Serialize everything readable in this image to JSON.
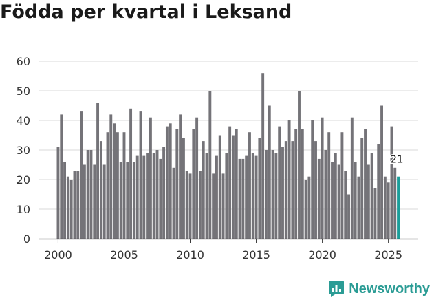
{
  "page": {
    "title": "Födda per kvartal i Leksand"
  },
  "brand": {
    "name": "Newsworthy",
    "icon": "newsworthy-logo-icon",
    "color": "#2b9c95"
  },
  "chart_data": {
    "type": "bar",
    "title": "Födda per kvartal i Leksand",
    "xlabel": "",
    "ylabel": "",
    "ylim": [
      0,
      60
    ],
    "yticks": [
      0,
      10,
      20,
      30,
      40,
      50,
      60
    ],
    "xticks": [
      {
        "label": "2000",
        "index": 0
      },
      {
        "label": "2005",
        "index": 20
      },
      {
        "label": "2010",
        "index": 40
      },
      {
        "label": "2015",
        "index": 60
      },
      {
        "label": "2020",
        "index": 80
      },
      {
        "label": "2025",
        "index": 100
      }
    ],
    "bar_color": "#747378",
    "highlight_color": "#1a9e9a",
    "highlight_label": "21",
    "categories": [
      "2000 Q1",
      "2000 Q2",
      "2000 Q3",
      "2000 Q4",
      "2001 Q1",
      "2001 Q2",
      "2001 Q3",
      "2001 Q4",
      "2002 Q1",
      "2002 Q2",
      "2002 Q3",
      "2002 Q4",
      "2003 Q1",
      "2003 Q2",
      "2003 Q3",
      "2003 Q4",
      "2004 Q1",
      "2004 Q2",
      "2004 Q3",
      "2004 Q4",
      "2005 Q1",
      "2005 Q2",
      "2005 Q3",
      "2005 Q4",
      "2006 Q1",
      "2006 Q2",
      "2006 Q3",
      "2006 Q4",
      "2007 Q1",
      "2007 Q2",
      "2007 Q3",
      "2007 Q4",
      "2008 Q1",
      "2008 Q2",
      "2008 Q3",
      "2008 Q4",
      "2009 Q1",
      "2009 Q2",
      "2009 Q3",
      "2009 Q4",
      "2010 Q1",
      "2010 Q2",
      "2010 Q3",
      "2010 Q4",
      "2011 Q1",
      "2011 Q2",
      "2011 Q3",
      "2011 Q4",
      "2012 Q1",
      "2012 Q2",
      "2012 Q3",
      "2012 Q4",
      "2013 Q1",
      "2013 Q2",
      "2013 Q3",
      "2013 Q4",
      "2014 Q1",
      "2014 Q2",
      "2014 Q3",
      "2014 Q4",
      "2015 Q1",
      "2015 Q2",
      "2015 Q3",
      "2015 Q4",
      "2016 Q1",
      "2016 Q2",
      "2016 Q3",
      "2016 Q4",
      "2017 Q1",
      "2017 Q2",
      "2017 Q3",
      "2017 Q4",
      "2018 Q1",
      "2018 Q2",
      "2018 Q3",
      "2018 Q4",
      "2019 Q1",
      "2019 Q2",
      "2019 Q3",
      "2019 Q4",
      "2020 Q1",
      "2020 Q2",
      "2020 Q3",
      "2020 Q4",
      "2021 Q1",
      "2021 Q2",
      "2021 Q3",
      "2021 Q4",
      "2022 Q1",
      "2022 Q2",
      "2022 Q3",
      "2022 Q4",
      "2023 Q1",
      "2023 Q2",
      "2023 Q3",
      "2023 Q4",
      "2024 Q1",
      "2024 Q2",
      "2024 Q3",
      "2024 Q4",
      "2025 Q1",
      "2025 Q2",
      "2025 Q3",
      "2025 Q4"
    ],
    "values": [
      31,
      42,
      26,
      21,
      20,
      23,
      23,
      43,
      25,
      30,
      30,
      25,
      46,
      33,
      25,
      36,
      42,
      39,
      36,
      26,
      36,
      26,
      44,
      26,
      28,
      43,
      28,
      29,
      41,
      29,
      30,
      27,
      31,
      38,
      39,
      24,
      37,
      42,
      34,
      23,
      22,
      37,
      41,
      23,
      33,
      29,
      50,
      22,
      28,
      35,
      22,
      29,
      38,
      35,
      37,
      27,
      27,
      28,
      36,
      29,
      28,
      34,
      56,
      30,
      45,
      30,
      29,
      38,
      31,
      33,
      40,
      33,
      37,
      50,
      37,
      20,
      21,
      40,
      33,
      27,
      41,
      30,
      36,
      26,
      29,
      25,
      36,
      23,
      15,
      41,
      26,
      21,
      34,
      37,
      25,
      29,
      17,
      32,
      45,
      21,
      19,
      38,
      24,
      21
    ]
  }
}
